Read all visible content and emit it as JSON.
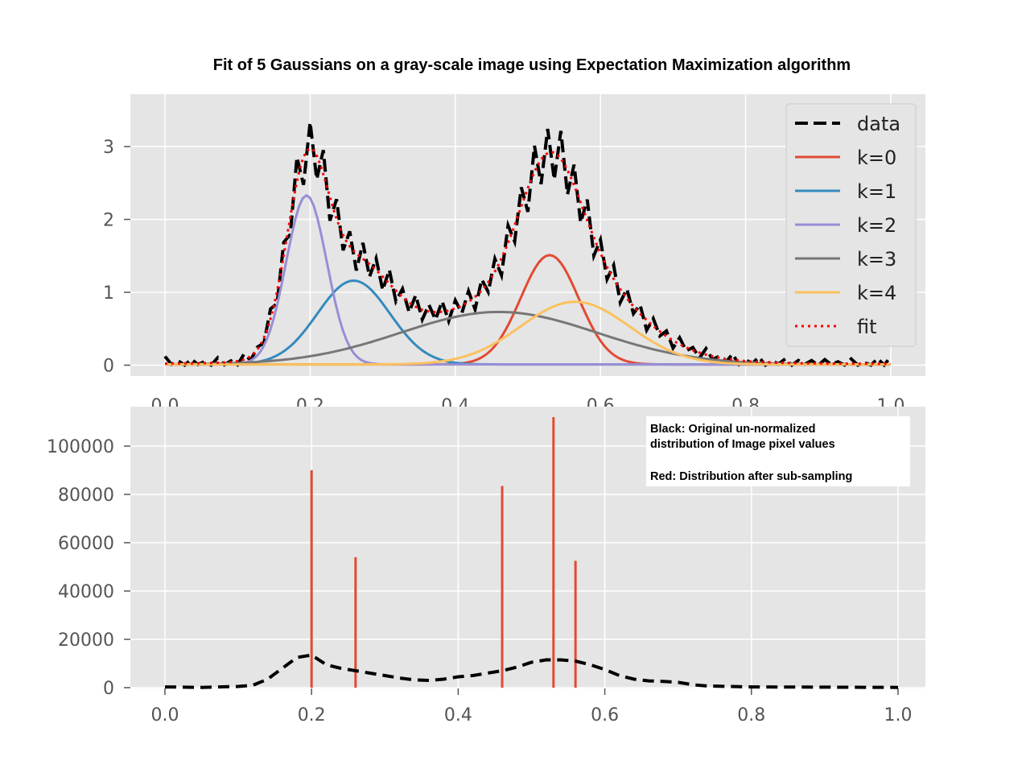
{
  "chart_data": [
    {
      "type": "line",
      "title": "Fit of 5 Gaussians on a gray-scale image using Expectation Maximization algorithm",
      "xlim": [
        0.0,
        1.0
      ],
      "ylim": [
        -0.15,
        3.7
      ],
      "xticks": [
        "0.0",
        "0.2",
        "0.4",
        "0.6",
        "0.8",
        "1.0"
      ],
      "yticks": [
        "0",
        "1",
        "2",
        "3"
      ],
      "grid": true,
      "legend_position": "upper-right",
      "components": [
        {
          "name": "k=0",
          "color": "#E24A33",
          "mean": 0.53,
          "std": 0.04,
          "peak": 1.5
        },
        {
          "name": "k=1",
          "color": "#348ABD",
          "mean": 0.26,
          "std": 0.05,
          "peak": 1.15
        },
        {
          "name": "k=2",
          "color": "#988ED5",
          "mean": 0.195,
          "std": 0.028,
          "peak": 2.32
        },
        {
          "name": "k=3",
          "color": "#777777",
          "mean": 0.46,
          "std": 0.135,
          "peak": 0.72
        },
        {
          "name": "k=4",
          "color": "#FBC15E",
          "mean": 0.565,
          "std": 0.075,
          "peak": 0.86
        }
      ],
      "series": [
        {
          "name": "data",
          "style": "dashed",
          "color": "#000000"
        },
        {
          "name": "k=0",
          "style": "solid",
          "color": "#E24A33"
        },
        {
          "name": "k=1",
          "style": "solid",
          "color": "#348ABD"
        },
        {
          "name": "k=2",
          "style": "solid",
          "color": "#988ED5"
        },
        {
          "name": "k=3",
          "style": "solid",
          "color": "#777777"
        },
        {
          "name": "k=4",
          "style": "solid",
          "color": "#FBC15E"
        },
        {
          "name": "fit",
          "style": "dotted",
          "color": "#FF0000"
        }
      ]
    },
    {
      "type": "bar",
      "xlim": [
        -0.05,
        1.04
      ],
      "ylim": [
        0,
        116000
      ],
      "xticks": [
        "0.0",
        "0.2",
        "0.4",
        "0.6",
        "0.8",
        "1.0"
      ],
      "yticks": [
        "0",
        "20000",
        "40000",
        "60000",
        "80000",
        "100000"
      ],
      "grid": true,
      "bars": {
        "name": "sub-sampled",
        "color": "#E24A33",
        "x": [
          0.2,
          0.26,
          0.46,
          0.53,
          0.56
        ],
        "values": [
          90000,
          54000,
          83500,
          112000,
          52500
        ]
      },
      "line": {
        "name": "original",
        "style": "dashed",
        "color": "#000000",
        "x": [
          0.0,
          0.05,
          0.1,
          0.12,
          0.14,
          0.16,
          0.18,
          0.2,
          0.22,
          0.24,
          0.26,
          0.28,
          0.3,
          0.32,
          0.34,
          0.36,
          0.38,
          0.4,
          0.42,
          0.44,
          0.46,
          0.48,
          0.5,
          0.52,
          0.54,
          0.56,
          0.58,
          0.6,
          0.62,
          0.64,
          0.66,
          0.68,
          0.7,
          0.72,
          0.74,
          0.8,
          0.9,
          1.0
        ],
        "values": [
          300,
          100,
          500,
          1000,
          3500,
          8000,
          12500,
          13500,
          9500,
          8000,
          7000,
          6000,
          5000,
          4000,
          3200,
          3000,
          3500,
          4500,
          5000,
          6000,
          7000,
          8500,
          10500,
          11500,
          11500,
          11000,
          9500,
          7500,
          5000,
          3500,
          2800,
          2600,
          2200,
          1200,
          700,
          300,
          200,
          100
        ]
      },
      "annotation": {
        "line1": "Black: Original un-normalized",
        "line2": "distribution of Image pixel values",
        "line3": "Red: Distribution after sub-sampling"
      }
    }
  ]
}
